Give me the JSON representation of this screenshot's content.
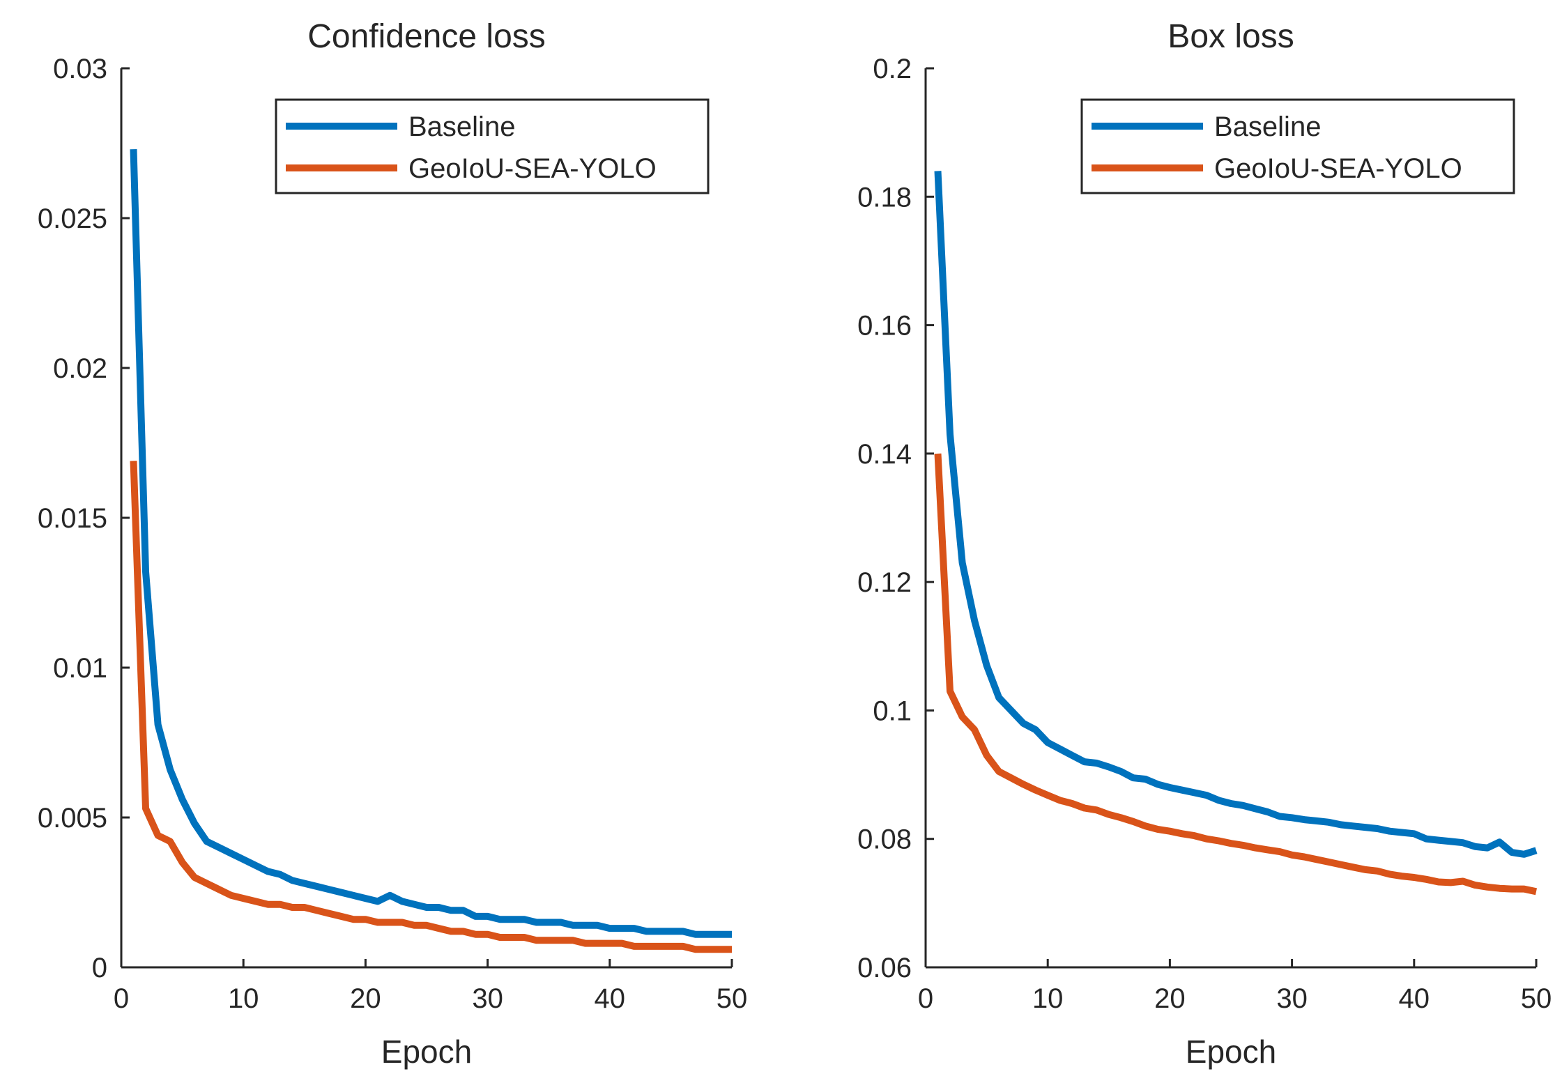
{
  "chart_data": [
    {
      "type": "line",
      "title": "Confidence loss",
      "xlabel": "Epoch",
      "ylabel": "",
      "xlim": [
        0,
        50
      ],
      "ylim": [
        0,
        0.03
      ],
      "xticks": [
        0,
        10,
        20,
        30,
        40,
        50
      ],
      "xtick_labels": [
        "0",
        "10",
        "20",
        "30",
        "40",
        "50"
      ],
      "yticks": [
        0,
        0.005,
        0.01,
        0.015,
        0.02,
        0.025,
        0.03
      ],
      "ytick_labels": [
        "0",
        "0.005",
        "0.01",
        "0.015",
        "0.02",
        "0.025",
        "0.03"
      ],
      "grid": false,
      "legend_position": "top-right",
      "x": [
        1,
        2,
        3,
        4,
        5,
        6,
        7,
        8,
        9,
        10,
        11,
        12,
        13,
        14,
        15,
        16,
        17,
        18,
        19,
        20,
        21,
        22,
        23,
        24,
        25,
        26,
        27,
        28,
        29,
        30,
        31,
        32,
        33,
        34,
        35,
        36,
        37,
        38,
        39,
        40,
        41,
        42,
        43,
        44,
        45,
        46,
        47,
        48,
        49,
        50
      ],
      "series": [
        {
          "name": "Baseline",
          "color": "#0072BD",
          "values": [
            0.0273,
            0.0132,
            0.0081,
            0.0066,
            0.0056,
            0.0048,
            0.0042,
            0.004,
            0.0038,
            0.0036,
            0.0034,
            0.0032,
            0.0031,
            0.0029,
            0.0028,
            0.0027,
            0.0026,
            0.0025,
            0.0024,
            0.0023,
            0.0022,
            0.0024,
            0.0022,
            0.0021,
            0.002,
            0.002,
            0.0019,
            0.0019,
            0.0017,
            0.0017,
            0.0016,
            0.0016,
            0.0016,
            0.0015,
            0.0015,
            0.0015,
            0.0014,
            0.0014,
            0.0014,
            0.0013,
            0.0013,
            0.0013,
            0.0012,
            0.0012,
            0.0012,
            0.0012,
            0.0011,
            0.0011,
            0.0011,
            0.0011
          ]
        },
        {
          "name": "GeoIoU-SEA-YOLO",
          "color": "#D95319",
          "values": [
            0.0169,
            0.0053,
            0.0044,
            0.0042,
            0.0035,
            0.003,
            0.0028,
            0.0026,
            0.0024,
            0.0023,
            0.0022,
            0.0021,
            0.0021,
            0.002,
            0.002,
            0.0019,
            0.0018,
            0.0017,
            0.0016,
            0.0016,
            0.0015,
            0.0015,
            0.0015,
            0.0014,
            0.0014,
            0.0013,
            0.0012,
            0.0012,
            0.0011,
            0.0011,
            0.001,
            0.001,
            0.001,
            0.0009,
            0.0009,
            0.0009,
            0.0009,
            0.0008,
            0.0008,
            0.0008,
            0.0008,
            0.0007,
            0.0007,
            0.0007,
            0.0007,
            0.0007,
            0.0006,
            0.0006,
            0.0006,
            0.0006
          ]
        }
      ]
    },
    {
      "type": "line",
      "title": "Box loss",
      "xlabel": "Epoch",
      "ylabel": "",
      "xlim": [
        0,
        50
      ],
      "ylim": [
        0.06,
        0.2
      ],
      "xticks": [
        0,
        10,
        20,
        30,
        40,
        50
      ],
      "xtick_labels": [
        "0",
        "10",
        "20",
        "30",
        "40",
        "50"
      ],
      "yticks": [
        0.06,
        0.08,
        0.1,
        0.12,
        0.14,
        0.16,
        0.18,
        0.2
      ],
      "ytick_labels": [
        "0.06",
        "0.08",
        "0.1",
        "0.12",
        "0.14",
        "0.16",
        "0.18",
        "0.2"
      ],
      "grid": false,
      "legend_position": "top-right",
      "x": [
        1,
        2,
        3,
        4,
        5,
        6,
        7,
        8,
        9,
        10,
        11,
        12,
        13,
        14,
        15,
        16,
        17,
        18,
        19,
        20,
        21,
        22,
        23,
        24,
        25,
        26,
        27,
        28,
        29,
        30,
        31,
        32,
        33,
        34,
        35,
        36,
        37,
        38,
        39,
        40,
        41,
        42,
        43,
        44,
        45,
        46,
        47,
        48,
        49,
        50
      ],
      "series": [
        {
          "name": "Baseline",
          "color": "#0072BD",
          "values": [
            0.184,
            0.143,
            0.123,
            0.114,
            0.107,
            0.102,
            0.1,
            0.098,
            0.097,
            0.095,
            0.094,
            0.093,
            0.092,
            0.0918,
            0.0912,
            0.0905,
            0.0895,
            0.0893,
            0.0885,
            0.088,
            0.0876,
            0.0872,
            0.0868,
            0.086,
            0.0855,
            0.0852,
            0.0847,
            0.0842,
            0.0835,
            0.0833,
            0.083,
            0.0828,
            0.0826,
            0.0822,
            0.082,
            0.0818,
            0.0816,
            0.0812,
            0.081,
            0.0808,
            0.08,
            0.0798,
            0.0796,
            0.0794,
            0.0788,
            0.0786,
            0.0795,
            0.0779,
            0.0776,
            0.0782
          ]
        },
        {
          "name": "GeoIoU-SEA-YOLO",
          "color": "#D95319",
          "values": [
            0.14,
            0.103,
            0.099,
            0.097,
            0.093,
            0.0905,
            0.0895,
            0.0885,
            0.0876,
            0.0868,
            0.086,
            0.0855,
            0.0848,
            0.0845,
            0.0838,
            0.0833,
            0.0827,
            0.082,
            0.0815,
            0.0812,
            0.0808,
            0.0805,
            0.08,
            0.0797,
            0.0793,
            0.079,
            0.0786,
            0.0783,
            0.078,
            0.0775,
            0.0772,
            0.0768,
            0.0764,
            0.076,
            0.0756,
            0.0752,
            0.075,
            0.0745,
            0.0742,
            0.074,
            0.0737,
            0.0733,
            0.0732,
            0.0734,
            0.0728,
            0.0725,
            0.0723,
            0.0722,
            0.0722,
            0.0718
          ]
        }
      ]
    }
  ]
}
